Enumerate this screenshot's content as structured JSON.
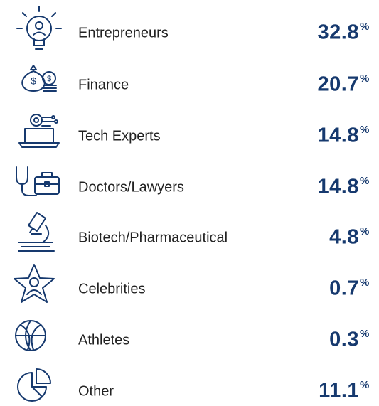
{
  "items": [
    {
      "label": "Entrepreneurs",
      "value": "32.8",
      "unit": "%"
    },
    {
      "label": "Finance",
      "value": "20.7",
      "unit": "%"
    },
    {
      "label": "Tech Experts",
      "value": "14.8",
      "unit": "%"
    },
    {
      "label": "Doctors/Lawyers",
      "value": "14.8",
      "unit": "%"
    },
    {
      "label": "Biotech/Pharmaceutical",
      "value": "4.8",
      "unit": "%"
    },
    {
      "label": "Celebrities",
      "value": "0.7",
      "unit": "%"
    },
    {
      "label": "Athletes",
      "value": "0.3",
      "unit": "%"
    },
    {
      "label": "Other",
      "value": "11.1",
      "unit": "%"
    }
  ]
}
